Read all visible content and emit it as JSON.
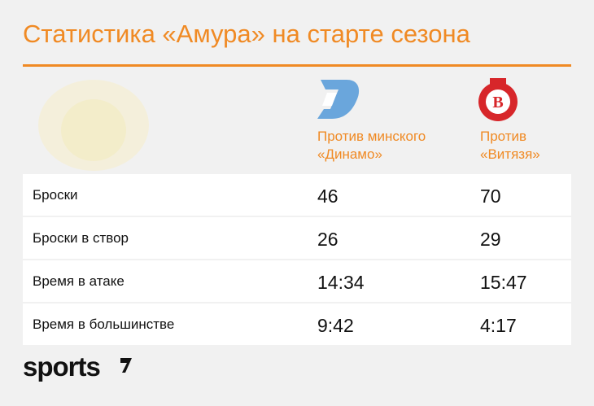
{
  "header": {
    "title": "Статистика «Амура» на старте сезона"
  },
  "table": {
    "columns": [
      "Против минского «Динамо»",
      "Против «Витязя»"
    ],
    "rows": [
      [
        "Броски",
        46,
        70
      ],
      [
        "Броски в створ",
        26,
        29
      ],
      [
        "Время в атаке",
        "14:34",
        "15:47"
      ],
      [
        "Время в большинстве",
        "9:42",
        "4:17"
      ]
    ]
  },
  "footer": {
    "brand": "sports"
  }
}
